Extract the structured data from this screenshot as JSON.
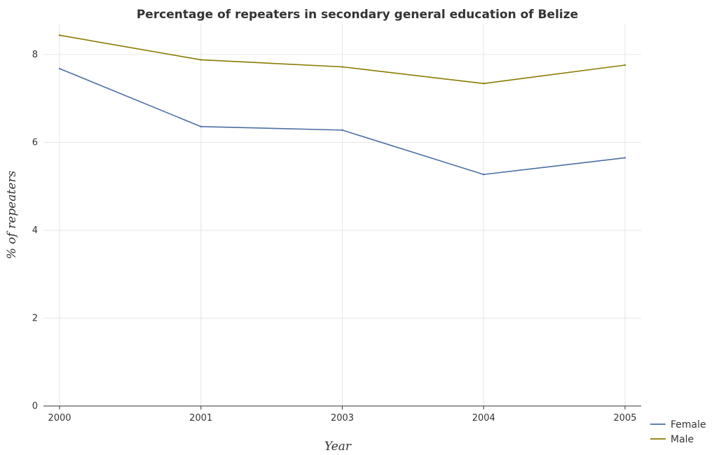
{
  "chart_data": {
    "type": "line",
    "title": "Percentage of repeaters in secondary general education of Belize",
    "xlabel": "Year",
    "ylabel": "% of repeaters",
    "categories": [
      "2000",
      "2001",
      "2003",
      "2004",
      "2005"
    ],
    "ylim": [
      0,
      8.7
    ],
    "yticks": [
      "0",
      "2",
      "4",
      "6",
      "8"
    ],
    "grid": true,
    "legend_position": "bottom-right",
    "series": [
      {
        "name": "Female",
        "color": "#4a6fa5",
        "values": [
          7.68,
          6.36,
          6.28,
          5.27,
          5.65
        ]
      },
      {
        "name": "Male",
        "color": "#8b7a00",
        "values": [
          8.44,
          7.88,
          7.72,
          7.34,
          7.76
        ]
      }
    ]
  }
}
